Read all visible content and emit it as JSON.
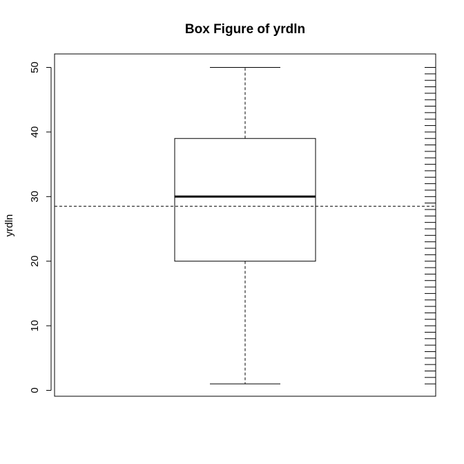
{
  "chart_data": {
    "type": "box",
    "title": "Box Figure of yrdln",
    "xlabel": "",
    "ylabel": "yrdln",
    "ylim": [
      -1,
      51
    ],
    "yticks": [
      0,
      10,
      20,
      30,
      40,
      50
    ],
    "grid": false,
    "box": {
      "min": 1,
      "q1": 20,
      "median": 30,
      "q3": 39,
      "max": 50
    },
    "mean_line": 28.5,
    "rug_values": [
      1,
      2,
      3,
      4,
      5,
      6,
      7,
      8,
      9,
      10,
      11,
      12,
      13,
      14,
      15,
      16,
      17,
      18,
      19,
      20,
      21,
      22,
      23,
      24,
      25,
      26,
      27,
      28,
      29,
      30,
      31,
      32,
      33,
      34,
      35,
      36,
      37,
      38,
      39,
      40,
      41,
      42,
      43,
      44,
      45,
      46,
      47,
      48,
      49,
      50
    ]
  }
}
